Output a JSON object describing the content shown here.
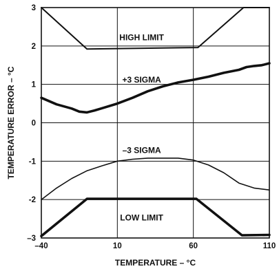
{
  "chart_data": {
    "type": "line",
    "xlabel": "TEMPERATURE – °C",
    "ylabel": "TEMPERATURE ERROR – °C",
    "xlim": [
      -40,
      110
    ],
    "ylim": [
      -3,
      3
    ],
    "x_ticks": [
      -40,
      10,
      60,
      110
    ],
    "x_tick_labels": [
      "–40",
      "10",
      "60",
      "110"
    ],
    "y_ticks": [
      3,
      2,
      1,
      0,
      -1,
      -2,
      -3
    ],
    "y_tick_labels": [
      "3",
      "2",
      "1",
      "0",
      "-1",
      "-2",
      "–3"
    ],
    "grid": true,
    "line_color": "#111111",
    "series": [
      {
        "name": "HIGH LIMIT",
        "x": [
          -40,
          -10,
          63,
          93,
          110
        ],
        "y": [
          3.0,
          1.92,
          1.96,
          3.0,
          3.0
        ]
      },
      {
        "name": "+3 SIGMA",
        "x": [
          -40,
          -30,
          -20,
          -15,
          -10,
          -5,
          0,
          10,
          20,
          30,
          40,
          50,
          60,
          70,
          80,
          90,
          95,
          100,
          105,
          110
        ],
        "y": [
          0.65,
          0.48,
          0.37,
          0.29,
          0.27,
          0.32,
          0.38,
          0.5,
          0.65,
          0.82,
          0.95,
          1.05,
          1.12,
          1.2,
          1.3,
          1.38,
          1.45,
          1.48,
          1.5,
          1.55
        ]
      },
      {
        "name": "–3 SIGMA",
        "x": [
          -40,
          -30,
          -20,
          -10,
          0,
          10,
          20,
          30,
          40,
          50,
          60,
          70,
          80,
          90,
          100,
          110
        ],
        "y": [
          -2.0,
          -1.7,
          -1.45,
          -1.25,
          -1.12,
          -1.0,
          -0.95,
          -0.92,
          -0.92,
          -0.92,
          -0.97,
          -1.1,
          -1.3,
          -1.57,
          -1.7,
          -1.75
        ]
      },
      {
        "name": "LOW LIMIT",
        "x": [
          -40,
          -10,
          62,
          92,
          110
        ],
        "y": [
          -2.95,
          -1.98,
          -1.98,
          -2.93,
          -2.92
        ]
      }
    ],
    "annotations": [
      {
        "text": "HIGH LIMIT",
        "x": 26,
        "y": 2.22
      },
      {
        "text": "+3 SIGMA",
        "x": 26,
        "y": 1.12
      },
      {
        "text": "–3 SIGMA",
        "x": 26,
        "y": -0.72
      },
      {
        "text": "LOW LIMIT",
        "x": 26,
        "y": -2.47
      }
    ]
  }
}
